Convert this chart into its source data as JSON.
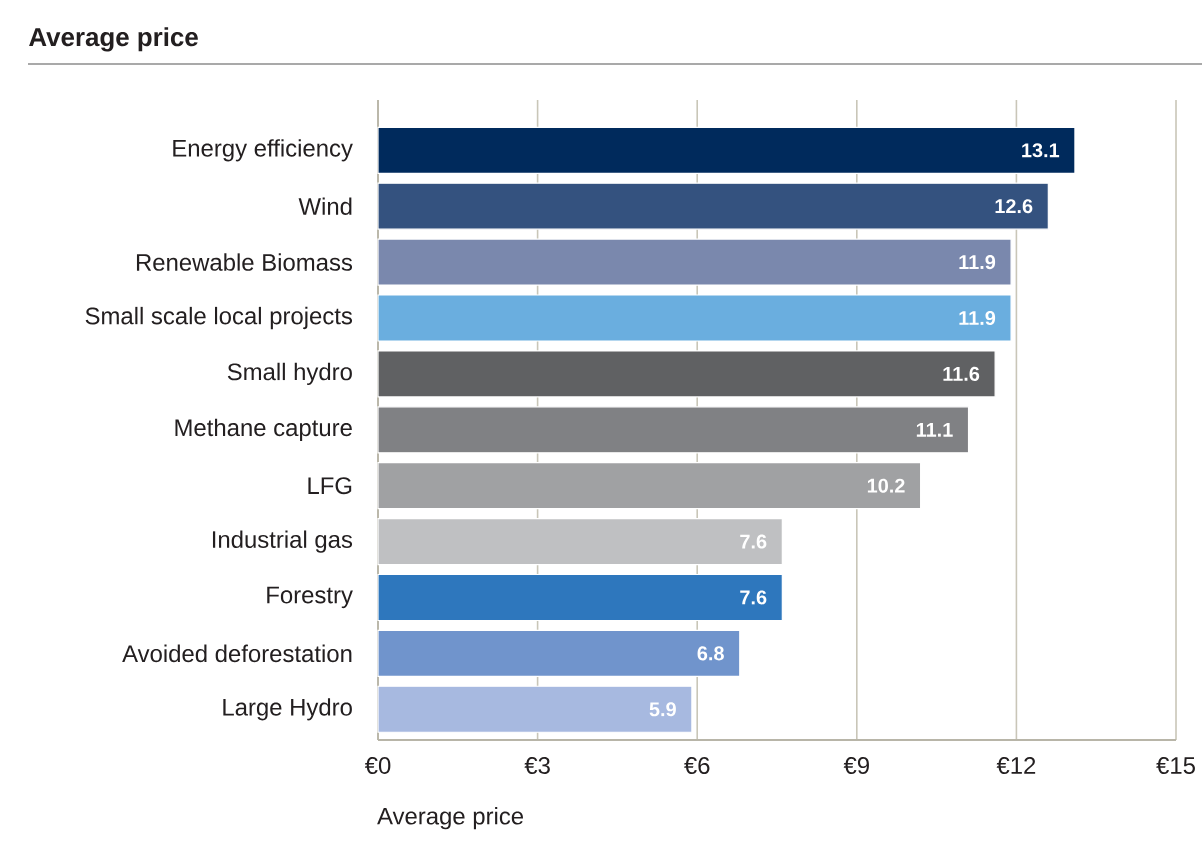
{
  "chart_data": {
    "type": "bar",
    "orientation": "horizontal",
    "title": "Average price",
    "xlabel": "Average price",
    "categories": [
      "Energy efficiency",
      "Wind",
      "Renewable Biomass",
      "Small scale local projects",
      "Small hydro",
      "Methane capture",
      "LFG",
      "Industrial gas",
      "Forestry",
      "Avoided deforestation",
      "Large Hydro"
    ],
    "values": [
      13.1,
      12.6,
      11.9,
      11.9,
      11.6,
      11.1,
      10.2,
      7.6,
      7.6,
      6.8,
      5.9
    ],
    "colors": [
      "#002a5c",
      "#34527f",
      "#7a88ad",
      "#6aaedf",
      "#606163",
      "#808184",
      "#a0a1a3",
      "#bfc0c2",
      "#2e77bd",
      "#7094cc",
      "#a7b9e0"
    ],
    "xlim": [
      0,
      15
    ],
    "xticks": [
      {
        "value": 0,
        "label": "€0"
      },
      {
        "value": 3,
        "label": "€3"
      },
      {
        "value": 6,
        "label": "€6"
      },
      {
        "value": 9,
        "label": "€9"
      },
      {
        "value": 12,
        "label": "€12"
      },
      {
        "value": 15,
        "label": "€15"
      }
    ],
    "grid": "x",
    "data_labels": true
  }
}
